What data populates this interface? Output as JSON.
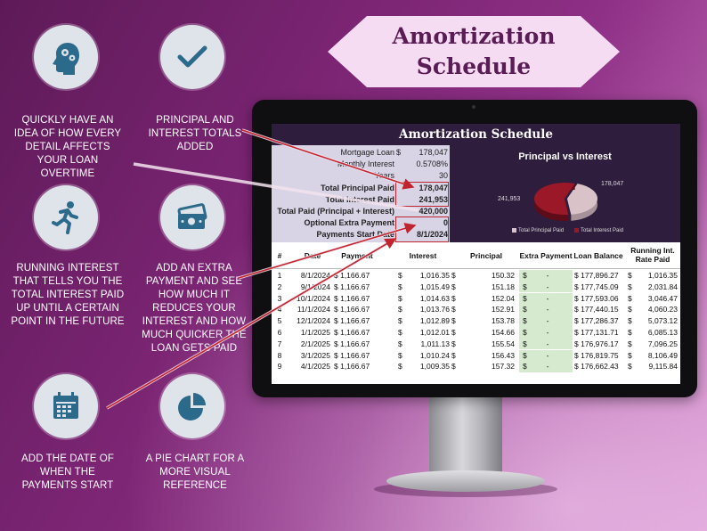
{
  "banner": {
    "line1": "Amortization",
    "line2": "Schedule"
  },
  "features": [
    {
      "icon": "head-gears-icon",
      "text": "Quickly have an idea of how every detail affects your loan overtime"
    },
    {
      "icon": "checkmark-icon",
      "text": "Principal and interest totals added"
    },
    {
      "icon": "running-person-icon",
      "text": "Running interest that tells you the total interest paid up until a certain point in the future"
    },
    {
      "icon": "money-icon",
      "text": "Add an extra payment and see how much it reduces your interest and how much quicker the loan gets paid"
    },
    {
      "icon": "calendar-icon",
      "text": "Add the date of when the payments start"
    },
    {
      "icon": "pie-chart-icon",
      "text": "A pie chart for a more visual reference"
    }
  ],
  "sheet": {
    "title": "Amortization Schedule",
    "summary": [
      {
        "label": "Mortgage Loan",
        "currency": "$",
        "value": "178,047",
        "bold": false
      },
      {
        "label": "Monthly Interest",
        "currency": "",
        "value": "0.5708%",
        "bold": false
      },
      {
        "label": "Years",
        "currency": "",
        "value": "30",
        "bold": false
      },
      {
        "label": "Total Principal Paid",
        "currency": "",
        "value": "178,047",
        "bold": true
      },
      {
        "label": "Total Interest Paid",
        "currency": "",
        "value": "241,953",
        "bold": true
      },
      {
        "label": "Total Paid (Principal + Interest)",
        "currency": "",
        "value": "420,000",
        "bold": true
      },
      {
        "label": "Optional Extra Payment",
        "currency": "",
        "value": "0",
        "bold": true
      },
      {
        "label": "Payments Start Date",
        "currency": "",
        "value": "8/1/2024",
        "bold": true
      }
    ],
    "headers": [
      "#",
      "Date",
      "Payment",
      "Interest",
      "Principal",
      "Extra Payment",
      "Loan Balance",
      "Running Int. Rate Paid"
    ],
    "rows": [
      [
        "1",
        "8/1/2024",
        "$ 1,166.67",
        "$",
        "1,016.35",
        "$",
        "150.32",
        "$",
        "-",
        "$ 177,896.27",
        "$",
        "1,016.35"
      ],
      [
        "2",
        "9/1/2024",
        "$ 1,166.67",
        "$",
        "1,015.49",
        "$",
        "151.18",
        "$",
        "-",
        "$ 177,745.09",
        "$",
        "2,031.84"
      ],
      [
        "3",
        "10/1/2024",
        "$ 1,166.67",
        "$",
        "1,014.63",
        "$",
        "152.04",
        "$",
        "-",
        "$ 177,593.06",
        "$",
        "3,046.47"
      ],
      [
        "4",
        "11/1/2024",
        "$ 1,166.67",
        "$",
        "1,013.76",
        "$",
        "152.91",
        "$",
        "-",
        "$ 177,440.15",
        "$",
        "4,060.23"
      ],
      [
        "5",
        "12/1/2024",
        "$ 1,166.67",
        "$",
        "1,012.89",
        "$",
        "153.78",
        "$",
        "-",
        "$ 177,286.37",
        "$",
        "5,073.12"
      ],
      [
        "6",
        "1/1/2025",
        "$ 1,166.67",
        "$",
        "1,012.01",
        "$",
        "154.66",
        "$",
        "-",
        "$ 177,131.71",
        "$",
        "6,085.13"
      ],
      [
        "7",
        "2/1/2025",
        "$ 1,166.67",
        "$",
        "1,011.13",
        "$",
        "155.54",
        "$",
        "-",
        "$ 176,976.17",
        "$",
        "7,096.25"
      ],
      [
        "8",
        "3/1/2025",
        "$ 1,166.67",
        "$",
        "1,010.24",
        "$",
        "156.43",
        "$",
        "-",
        "$ 176,819.75",
        "$",
        "8,106.49"
      ],
      [
        "9",
        "4/1/2025",
        "$ 1,166.67",
        "$",
        "1,009.35",
        "$",
        "157.32",
        "$",
        "-",
        "$ 176,662.43",
        "$",
        "9,115.84"
      ]
    ],
    "chart": {
      "title": "Principal vs Interest",
      "slices": [
        {
          "name": "Total Principal Paid",
          "value": 178047,
          "label": "178,047",
          "color": "#d9c3c8"
        },
        {
          "name": "Total Interest Paid",
          "value": 241953,
          "label": "241,953",
          "color": "#9a1828"
        }
      ]
    }
  },
  "colors": {
    "accent_red": "#c0252f",
    "sheet_header": "#2e1d3c",
    "summary_bg": "#d8d4e6"
  }
}
